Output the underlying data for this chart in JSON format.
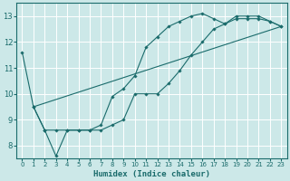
{
  "background_color": "#cce8e8",
  "grid_color": "#b0d4d4",
  "line_color": "#1a6b6b",
  "xlabel": "Humidex (Indice chaleur)",
  "xlim": [
    -0.5,
    23.5
  ],
  "ylim": [
    7.5,
    13.5
  ],
  "yticks": [
    8,
    9,
    10,
    11,
    12,
    13
  ],
  "xticks": [
    0,
    1,
    2,
    3,
    4,
    5,
    6,
    7,
    8,
    9,
    10,
    11,
    12,
    13,
    14,
    15,
    16,
    17,
    18,
    19,
    20,
    21,
    22,
    23
  ],
  "curve1_x": [
    0,
    1,
    2,
    3,
    4,
    5,
    6,
    7,
    8,
    9,
    10,
    11,
    12,
    13,
    14,
    15,
    16,
    17,
    18,
    19,
    20,
    21,
    22,
    23
  ],
  "curve1_y": [
    11.6,
    9.5,
    8.6,
    7.6,
    8.6,
    8.6,
    8.6,
    8.8,
    9.9,
    10.2,
    10.7,
    11.8,
    12.2,
    12.6,
    12.8,
    13.0,
    13.1,
    12.9,
    12.7,
    13.0,
    13.0,
    13.0,
    12.8,
    12.6
  ],
  "curve2_x": [
    1,
    2,
    3,
    4,
    5,
    6,
    7,
    8,
    9,
    10,
    11,
    12,
    13,
    14,
    15,
    16,
    17,
    18,
    19,
    20,
    21,
    22,
    23
  ],
  "curve2_y": [
    9.5,
    8.6,
    8.6,
    8.6,
    8.6,
    8.6,
    8.6,
    8.8,
    9.0,
    10.0,
    10.0,
    10.0,
    10.4,
    10.9,
    11.5,
    12.0,
    12.5,
    12.7,
    12.9,
    12.9,
    12.9,
    12.8,
    12.6
  ],
  "line_x": [
    1,
    23
  ],
  "line_y": [
    9.5,
    12.6
  ]
}
